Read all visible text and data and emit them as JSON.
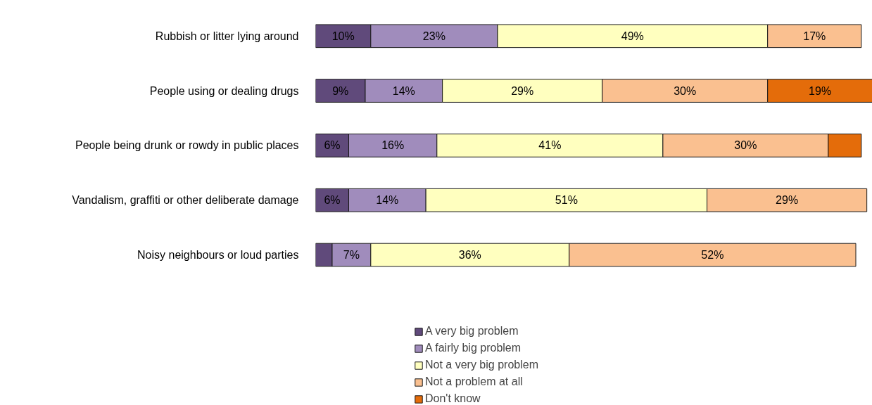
{
  "chart_data": {
    "type": "bar",
    "orientation": "horizontal",
    "stacked": true,
    "categories": [
      "Rubbish or litter lying around",
      "People using or dealing drugs",
      "People being drunk or rowdy in public places",
      "Vandalism, graffiti or other deliberate damage",
      "Noisy neighbours or loud parties"
    ],
    "xlim": [
      0,
      101
    ],
    "tick_labels": "y",
    "grid": false,
    "legend": "bottom",
    "series": [
      {
        "name": "A very big problem",
        "color": "#604a7b",
        "values": [
          10,
          9,
          6,
          6,
          3
        ],
        "value_labels": [
          "10%",
          "9%",
          "6%",
          "6%",
          null
        ]
      },
      {
        "name": "A fairly big problem",
        "color": "#a08cbc",
        "values": [
          23,
          14,
          16,
          14,
          7
        ],
        "value_labels": [
          "23%",
          "14%",
          "16%",
          "14%",
          "7%"
        ]
      },
      {
        "name": "Not a very big problem",
        "color": "#ffffbf",
        "values": [
          49,
          29,
          41,
          51,
          36
        ],
        "value_labels": [
          "49%",
          "29%",
          "41%",
          "51%",
          "36%"
        ]
      },
      {
        "name": "Not a problem at all",
        "color": "#fac090",
        "values": [
          17,
          30,
          30,
          29,
          52
        ],
        "value_labels": [
          "17%",
          "30%",
          "30%",
          "29%",
          "52%"
        ]
      },
      {
        "name": "Don't know",
        "color": "#e46c0a",
        "values": [
          null,
          19,
          6,
          null,
          null
        ],
        "value_labels": [
          null,
          "19%",
          null,
          null,
          null
        ]
      }
    ]
  }
}
